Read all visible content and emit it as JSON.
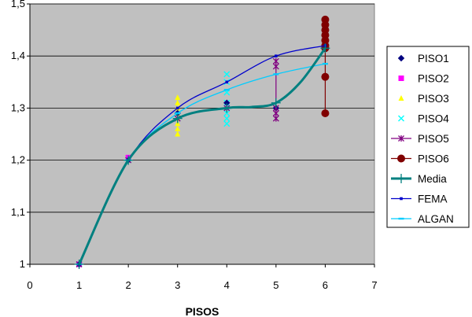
{
  "chart_data": {
    "type": "scatter",
    "title": "",
    "xlabel": "PISOS",
    "ylabel": "",
    "xlim": [
      0,
      7
    ],
    "ylim": [
      1,
      1.5
    ],
    "x_ticks": [
      "0",
      "1",
      "2",
      "3",
      "4",
      "5",
      "6",
      "7"
    ],
    "y_ticks": [
      "1",
      "1,1",
      "1,2",
      "1,3",
      "1,4",
      "1,5"
    ],
    "grid": true,
    "legend_position": "right",
    "colors": {
      "plot_bg": "#c0c0c0",
      "grid": "#000000"
    },
    "series": [
      {
        "name": "PISO1",
        "color": "#000080",
        "marker": "diamond",
        "points": [
          [
            1,
            1.0
          ],
          [
            2,
            1.2
          ],
          [
            3,
            1.29
          ],
          [
            4,
            1.31
          ],
          [
            5,
            1.3
          ],
          [
            6,
            1.42
          ]
        ]
      },
      {
        "name": "PISO2",
        "color": "#ff00ff",
        "marker": "square",
        "points": [
          [
            1,
            1.0
          ],
          [
            2,
            1.205
          ]
        ]
      },
      {
        "name": "PISO3",
        "color": "#ffff00",
        "marker": "triangle",
        "points": [
          [
            1,
            1.0
          ],
          [
            2,
            1.2
          ],
          [
            3,
            1.32
          ],
          [
            3,
            1.31
          ],
          [
            3,
            1.3
          ],
          [
            3,
            1.29
          ],
          [
            3,
            1.28
          ],
          [
            3,
            1.27
          ],
          [
            3,
            1.26
          ],
          [
            3,
            1.25
          ]
        ]
      },
      {
        "name": "PISO4",
        "color": "#00ffff",
        "marker": "x",
        "points": [
          [
            1,
            1.0
          ],
          [
            2,
            1.2
          ],
          [
            3,
            1.28
          ],
          [
            4,
            1.365
          ],
          [
            4,
            1.35
          ],
          [
            4,
            1.33
          ],
          [
            4,
            1.31
          ],
          [
            4,
            1.3
          ],
          [
            4,
            1.29
          ],
          [
            4,
            1.28
          ],
          [
            4,
            1.27
          ]
        ]
      },
      {
        "name": "PISO5",
        "color": "#800080",
        "marker": "star",
        "points": [
          [
            1,
            1.0
          ],
          [
            2,
            1.2
          ],
          [
            3,
            1.28
          ],
          [
            4,
            1.3
          ],
          [
            5,
            1.39
          ],
          [
            5,
            1.38
          ],
          [
            5,
            1.3
          ],
          [
            5,
            1.29
          ],
          [
            5,
            1.28
          ]
        ]
      },
      {
        "name": "PISO6",
        "color": "#800000",
        "marker": "circle",
        "points": [
          [
            6,
            1.47
          ],
          [
            6,
            1.46
          ],
          [
            6,
            1.45
          ],
          [
            6,
            1.44
          ],
          [
            6,
            1.43
          ],
          [
            6,
            1.42
          ],
          [
            6,
            1.415
          ],
          [
            6,
            1.36
          ],
          [
            6,
            1.29
          ]
        ]
      },
      {
        "name": "Media",
        "color": "#008080",
        "marker": "plus",
        "line": true,
        "width": 3,
        "points": [
          [
            1,
            1.0
          ],
          [
            2,
            1.2
          ],
          [
            3,
            1.28
          ],
          [
            4,
            1.3
          ],
          [
            4.5,
            1.302
          ],
          [
            5,
            1.31
          ],
          [
            5.5,
            1.35
          ],
          [
            6,
            1.415
          ]
        ]
      },
      {
        "name": "FEMA",
        "color": "#0000cc",
        "marker": "dot",
        "line": true,
        "width": 1.3,
        "points": [
          [
            1,
            1.0
          ],
          [
            2,
            1.2
          ],
          [
            3,
            1.3
          ],
          [
            4,
            1.35
          ],
          [
            5,
            1.4
          ],
          [
            6,
            1.42
          ]
        ]
      },
      {
        "name": "ALGAN",
        "color": "#00ccff",
        "marker": "dash",
        "line": true,
        "width": 1.3,
        "points": [
          [
            1,
            1.0
          ],
          [
            2,
            1.2
          ],
          [
            3,
            1.29
          ],
          [
            4,
            1.335
          ],
          [
            5,
            1.365
          ],
          [
            6,
            1.385
          ]
        ]
      }
    ],
    "vertical_ranges": [
      {
        "series": "PISO5",
        "x": 5,
        "from": 1.3,
        "to": 1.395,
        "color": "#800080"
      },
      {
        "series": "PISO6",
        "x": 6,
        "from": 1.29,
        "to": 1.47,
        "color": "#800000"
      }
    ]
  }
}
